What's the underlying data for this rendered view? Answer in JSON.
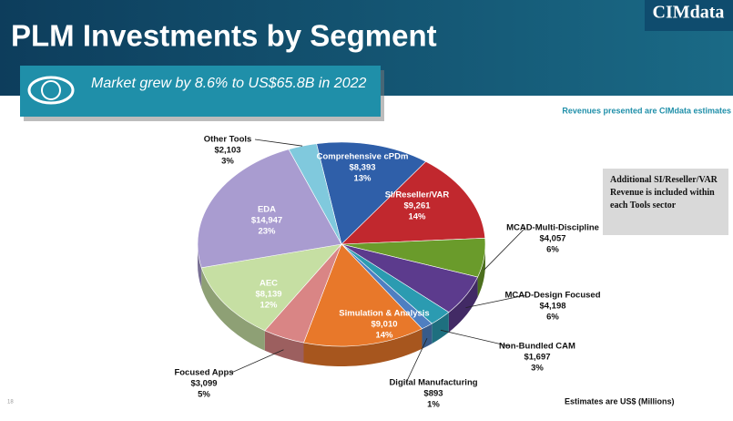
{
  "header": {
    "title": "PLM Investments by Segment",
    "logo": "CIMdata",
    "callout": "Market grew by 8.6% to US$65.8B in 2022",
    "source_note": "Revenues presented are CIMdata estimates"
  },
  "note": "Additional SI/Reseller/VAR Revenue is included within each Tools sector",
  "footer": {
    "units": "Estimates are US$ (Millions)",
    "page": "18"
  },
  "chart_data": {
    "type": "pie",
    "categories": [
      "Comprehensive cPDm",
      "SI/Reseller/VAR",
      "MCAD-Multi-Discipline",
      "MCAD-Design Focused",
      "Non-Bundled CAM",
      "Digital Manufacturing",
      "Simulation & Analysis",
      "Focused Apps",
      "AEC",
      "EDA",
      "Other Tools"
    ],
    "values": [
      8393,
      9261,
      4057,
      4198,
      1697,
      893,
      9010,
      3099,
      8139,
      14947,
      2103
    ],
    "value_labels": [
      "$8,393",
      "$9,261",
      "$4,057",
      "$4,198",
      "$1,697",
      "$893",
      "$9,010",
      "$3,099",
      "$8,139",
      "$14,947",
      "$2,103"
    ],
    "percents": [
      13,
      14,
      6,
      6,
      3,
      1,
      14,
      5,
      12,
      23,
      3
    ],
    "percent_labels": [
      "13%",
      "14%",
      "6%",
      "6%",
      "3%",
      "1%",
      "14%",
      "5%",
      "12%",
      "23%",
      "3%"
    ],
    "colors": [
      "#2f5fa9",
      "#c1282e",
      "#6a9b2b",
      "#5c3b8d",
      "#2b9bb1",
      "#4f7fc1",
      "#e8782a",
      "#d98585",
      "#c6dfa3",
      "#a99cd0",
      "#80c9dd"
    ]
  }
}
